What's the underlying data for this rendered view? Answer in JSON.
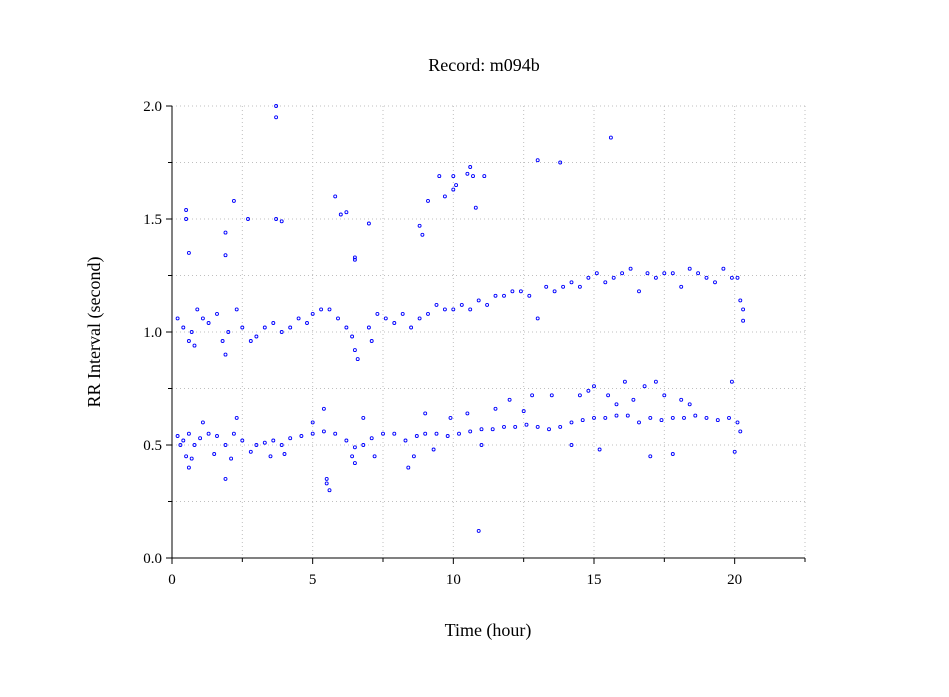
{
  "chart_data": {
    "type": "scatter",
    "title": "Record:  m094b",
    "xlabel": "Time (hour)",
    "ylabel": "RR Interval (second)",
    "xlim": [
      0,
      22.5
    ],
    "ylim": [
      0,
      2.0
    ],
    "x_ticks": [
      0,
      5,
      10,
      15,
      20
    ],
    "x_minor_ticks": [
      2.5,
      7.5,
      12.5,
      17.5,
      22.5
    ],
    "y_ticks": [
      0.0,
      0.5,
      1.0,
      1.5,
      2.0
    ],
    "y_tick_labels": [
      "0.0",
      "0.5",
      "1.0",
      "1.5",
      "2.0"
    ],
    "y_minor_ticks": [
      0.25,
      0.75,
      1.25,
      1.75
    ],
    "grid": true,
    "marker_color": "#0000ff",
    "series": [
      {
        "name": "",
        "points": [
          [
            0.2,
            0.54
          ],
          [
            0.4,
            0.52
          ],
          [
            0.6,
            0.55
          ],
          [
            0.8,
            0.5
          ],
          [
            1.0,
            0.53
          ],
          [
            1.3,
            0.55
          ],
          [
            1.6,
            0.54
          ],
          [
            1.9,
            0.5
          ],
          [
            2.2,
            0.55
          ],
          [
            2.5,
            0.52
          ],
          [
            2.8,
            0.47
          ],
          [
            3.0,
            0.5
          ],
          [
            3.3,
            0.51
          ],
          [
            3.6,
            0.52
          ],
          [
            3.9,
            0.5
          ],
          [
            4.2,
            0.53
          ],
          [
            4.6,
            0.54
          ],
          [
            5.0,
            0.55
          ],
          [
            5.4,
            0.56
          ],
          [
            5.8,
            0.55
          ],
          [
            6.2,
            0.52
          ],
          [
            6.5,
            0.49
          ],
          [
            6.8,
            0.5
          ],
          [
            7.1,
            0.53
          ],
          [
            7.5,
            0.55
          ],
          [
            7.9,
            0.55
          ],
          [
            8.3,
            0.52
          ],
          [
            8.7,
            0.54
          ],
          [
            9.0,
            0.55
          ],
          [
            9.4,
            0.55
          ],
          [
            9.8,
            0.54
          ],
          [
            10.2,
            0.55
          ],
          [
            10.6,
            0.56
          ],
          [
            11.0,
            0.57
          ],
          [
            11.4,
            0.57
          ],
          [
            11.8,
            0.58
          ],
          [
            12.2,
            0.58
          ],
          [
            12.6,
            0.59
          ],
          [
            13.0,
            0.58
          ],
          [
            13.4,
            0.57
          ],
          [
            13.8,
            0.58
          ],
          [
            14.2,
            0.6
          ],
          [
            14.6,
            0.61
          ],
          [
            15.0,
            0.62
          ],
          [
            15.4,
            0.62
          ],
          [
            15.8,
            0.63
          ],
          [
            16.2,
            0.63
          ],
          [
            16.6,
            0.6
          ],
          [
            17.0,
            0.62
          ],
          [
            17.4,
            0.61
          ],
          [
            17.8,
            0.62
          ],
          [
            18.2,
            0.62
          ],
          [
            18.6,
            0.63
          ],
          [
            19.0,
            0.62
          ],
          [
            19.4,
            0.61
          ],
          [
            19.8,
            0.62
          ],
          [
            20.1,
            0.6
          ],
          [
            20.2,
            0.56
          ],
          [
            0.3,
            0.5
          ],
          [
            0.5,
            0.45
          ],
          [
            0.6,
            0.4
          ],
          [
            0.7,
            0.44
          ],
          [
            1.1,
            0.6
          ],
          [
            1.5,
            0.46
          ],
          [
            1.9,
            0.35
          ],
          [
            2.1,
            0.44
          ],
          [
            2.3,
            0.62
          ],
          [
            3.5,
            0.45
          ],
          [
            4.0,
            0.46
          ],
          [
            5.0,
            0.6
          ],
          [
            5.4,
            0.66
          ],
          [
            5.5,
            0.35
          ],
          [
            5.5,
            0.33
          ],
          [
            5.6,
            0.3
          ],
          [
            6.4,
            0.45
          ],
          [
            6.5,
            0.42
          ],
          [
            6.8,
            0.62
          ],
          [
            7.2,
            0.45
          ],
          [
            8.4,
            0.4
          ],
          [
            8.6,
            0.45
          ],
          [
            9.0,
            0.64
          ],
          [
            9.3,
            0.48
          ],
          [
            9.9,
            0.62
          ],
          [
            10.5,
            0.64
          ],
          [
            10.9,
            0.12
          ],
          [
            11.0,
            0.5
          ],
          [
            11.5,
            0.66
          ],
          [
            12.0,
            0.7
          ],
          [
            12.5,
            0.65
          ],
          [
            12.8,
            0.72
          ],
          [
            13.5,
            0.72
          ],
          [
            14.2,
            0.5
          ],
          [
            14.5,
            0.72
          ],
          [
            14.8,
            0.74
          ],
          [
            15.0,
            0.76
          ],
          [
            15.2,
            0.48
          ],
          [
            15.5,
            0.72
          ],
          [
            15.8,
            0.68
          ],
          [
            16.1,
            0.78
          ],
          [
            16.4,
            0.7
          ],
          [
            16.8,
            0.76
          ],
          [
            17.0,
            0.45
          ],
          [
            17.2,
            0.78
          ],
          [
            17.5,
            0.72
          ],
          [
            17.8,
            0.46
          ],
          [
            18.1,
            0.7
          ],
          [
            18.4,
            0.68
          ],
          [
            19.9,
            0.78
          ],
          [
            20.0,
            0.47
          ],
          [
            0.2,
            1.06
          ],
          [
            0.4,
            1.02
          ],
          [
            0.6,
            0.96
          ],
          [
            0.7,
            1.0
          ],
          [
            0.8,
            0.94
          ],
          [
            0.9,
            1.1
          ],
          [
            1.1,
            1.06
          ],
          [
            1.3,
            1.04
          ],
          [
            1.6,
            1.08
          ],
          [
            1.8,
            0.96
          ],
          [
            1.9,
            0.9
          ],
          [
            2.0,
            1.0
          ],
          [
            2.3,
            1.1
          ],
          [
            2.5,
            1.02
          ],
          [
            2.8,
            0.96
          ],
          [
            3.0,
            0.98
          ],
          [
            3.3,
            1.02
          ],
          [
            3.6,
            1.04
          ],
          [
            3.9,
            1.0
          ],
          [
            4.2,
            1.02
          ],
          [
            4.5,
            1.06
          ],
          [
            4.8,
            1.04
          ],
          [
            5.0,
            1.08
          ],
          [
            5.3,
            1.1
          ],
          [
            5.6,
            1.1
          ],
          [
            5.9,
            1.06
          ],
          [
            6.2,
            1.02
          ],
          [
            6.4,
            0.98
          ],
          [
            6.5,
            0.92
          ],
          [
            6.6,
            0.88
          ],
          [
            7.0,
            1.02
          ],
          [
            7.1,
            0.96
          ],
          [
            7.3,
            1.08
          ],
          [
            7.6,
            1.06
          ],
          [
            7.9,
            1.04
          ],
          [
            8.2,
            1.08
          ],
          [
            8.5,
            1.02
          ],
          [
            8.8,
            1.06
          ],
          [
            9.1,
            1.08
          ],
          [
            9.4,
            1.12
          ],
          [
            9.7,
            1.1
          ],
          [
            10.0,
            1.1
          ],
          [
            10.3,
            1.12
          ],
          [
            10.6,
            1.1
          ],
          [
            10.9,
            1.14
          ],
          [
            11.2,
            1.12
          ],
          [
            11.5,
            1.16
          ],
          [
            11.8,
            1.16
          ],
          [
            12.1,
            1.18
          ],
          [
            12.4,
            1.18
          ],
          [
            12.7,
            1.16
          ],
          [
            13.0,
            1.06
          ],
          [
            13.3,
            1.2
          ],
          [
            13.6,
            1.18
          ],
          [
            13.9,
            1.2
          ],
          [
            14.2,
            1.22
          ],
          [
            14.5,
            1.2
          ],
          [
            14.8,
            1.24
          ],
          [
            15.1,
            1.26
          ],
          [
            15.4,
            1.22
          ],
          [
            15.7,
            1.24
          ],
          [
            16.0,
            1.26
          ],
          [
            16.3,
            1.28
          ],
          [
            16.6,
            1.18
          ],
          [
            16.9,
            1.26
          ],
          [
            17.2,
            1.24
          ],
          [
            17.5,
            1.26
          ],
          [
            17.8,
            1.26
          ],
          [
            18.1,
            1.2
          ],
          [
            18.4,
            1.28
          ],
          [
            18.7,
            1.26
          ],
          [
            19.0,
            1.24
          ],
          [
            19.3,
            1.22
          ],
          [
            19.6,
            1.28
          ],
          [
            19.9,
            1.24
          ],
          [
            20.1,
            1.24
          ],
          [
            20.2,
            1.14
          ],
          [
            20.3,
            1.1
          ],
          [
            20.3,
            1.05
          ],
          [
            0.5,
            1.54
          ],
          [
            0.5,
            1.5
          ],
          [
            0.6,
            1.35
          ],
          [
            1.9,
            1.44
          ],
          [
            1.9,
            1.34
          ],
          [
            2.2,
            1.58
          ],
          [
            2.7,
            1.5
          ],
          [
            3.7,
            2.0
          ],
          [
            3.7,
            1.95
          ],
          [
            3.7,
            1.5
          ],
          [
            3.9,
            1.49
          ],
          [
            5.8,
            1.6
          ],
          [
            6.0,
            1.52
          ],
          [
            6.2,
            1.53
          ],
          [
            6.5,
            1.33
          ],
          [
            6.5,
            1.32
          ],
          [
            7.0,
            1.48
          ],
          [
            8.8,
            1.47
          ],
          [
            8.9,
            1.43
          ],
          [
            9.1,
            1.58
          ],
          [
            9.5,
            1.69
          ],
          [
            9.7,
            1.6
          ],
          [
            10.0,
            1.69
          ],
          [
            10.0,
            1.63
          ],
          [
            10.1,
            1.65
          ],
          [
            10.5,
            1.7
          ],
          [
            10.6,
            1.73
          ],
          [
            10.7,
            1.69
          ],
          [
            10.8,
            1.55
          ],
          [
            11.1,
            1.69
          ],
          [
            13.0,
            1.76
          ],
          [
            13.8,
            1.75
          ],
          [
            15.6,
            1.86
          ]
        ]
      }
    ]
  }
}
